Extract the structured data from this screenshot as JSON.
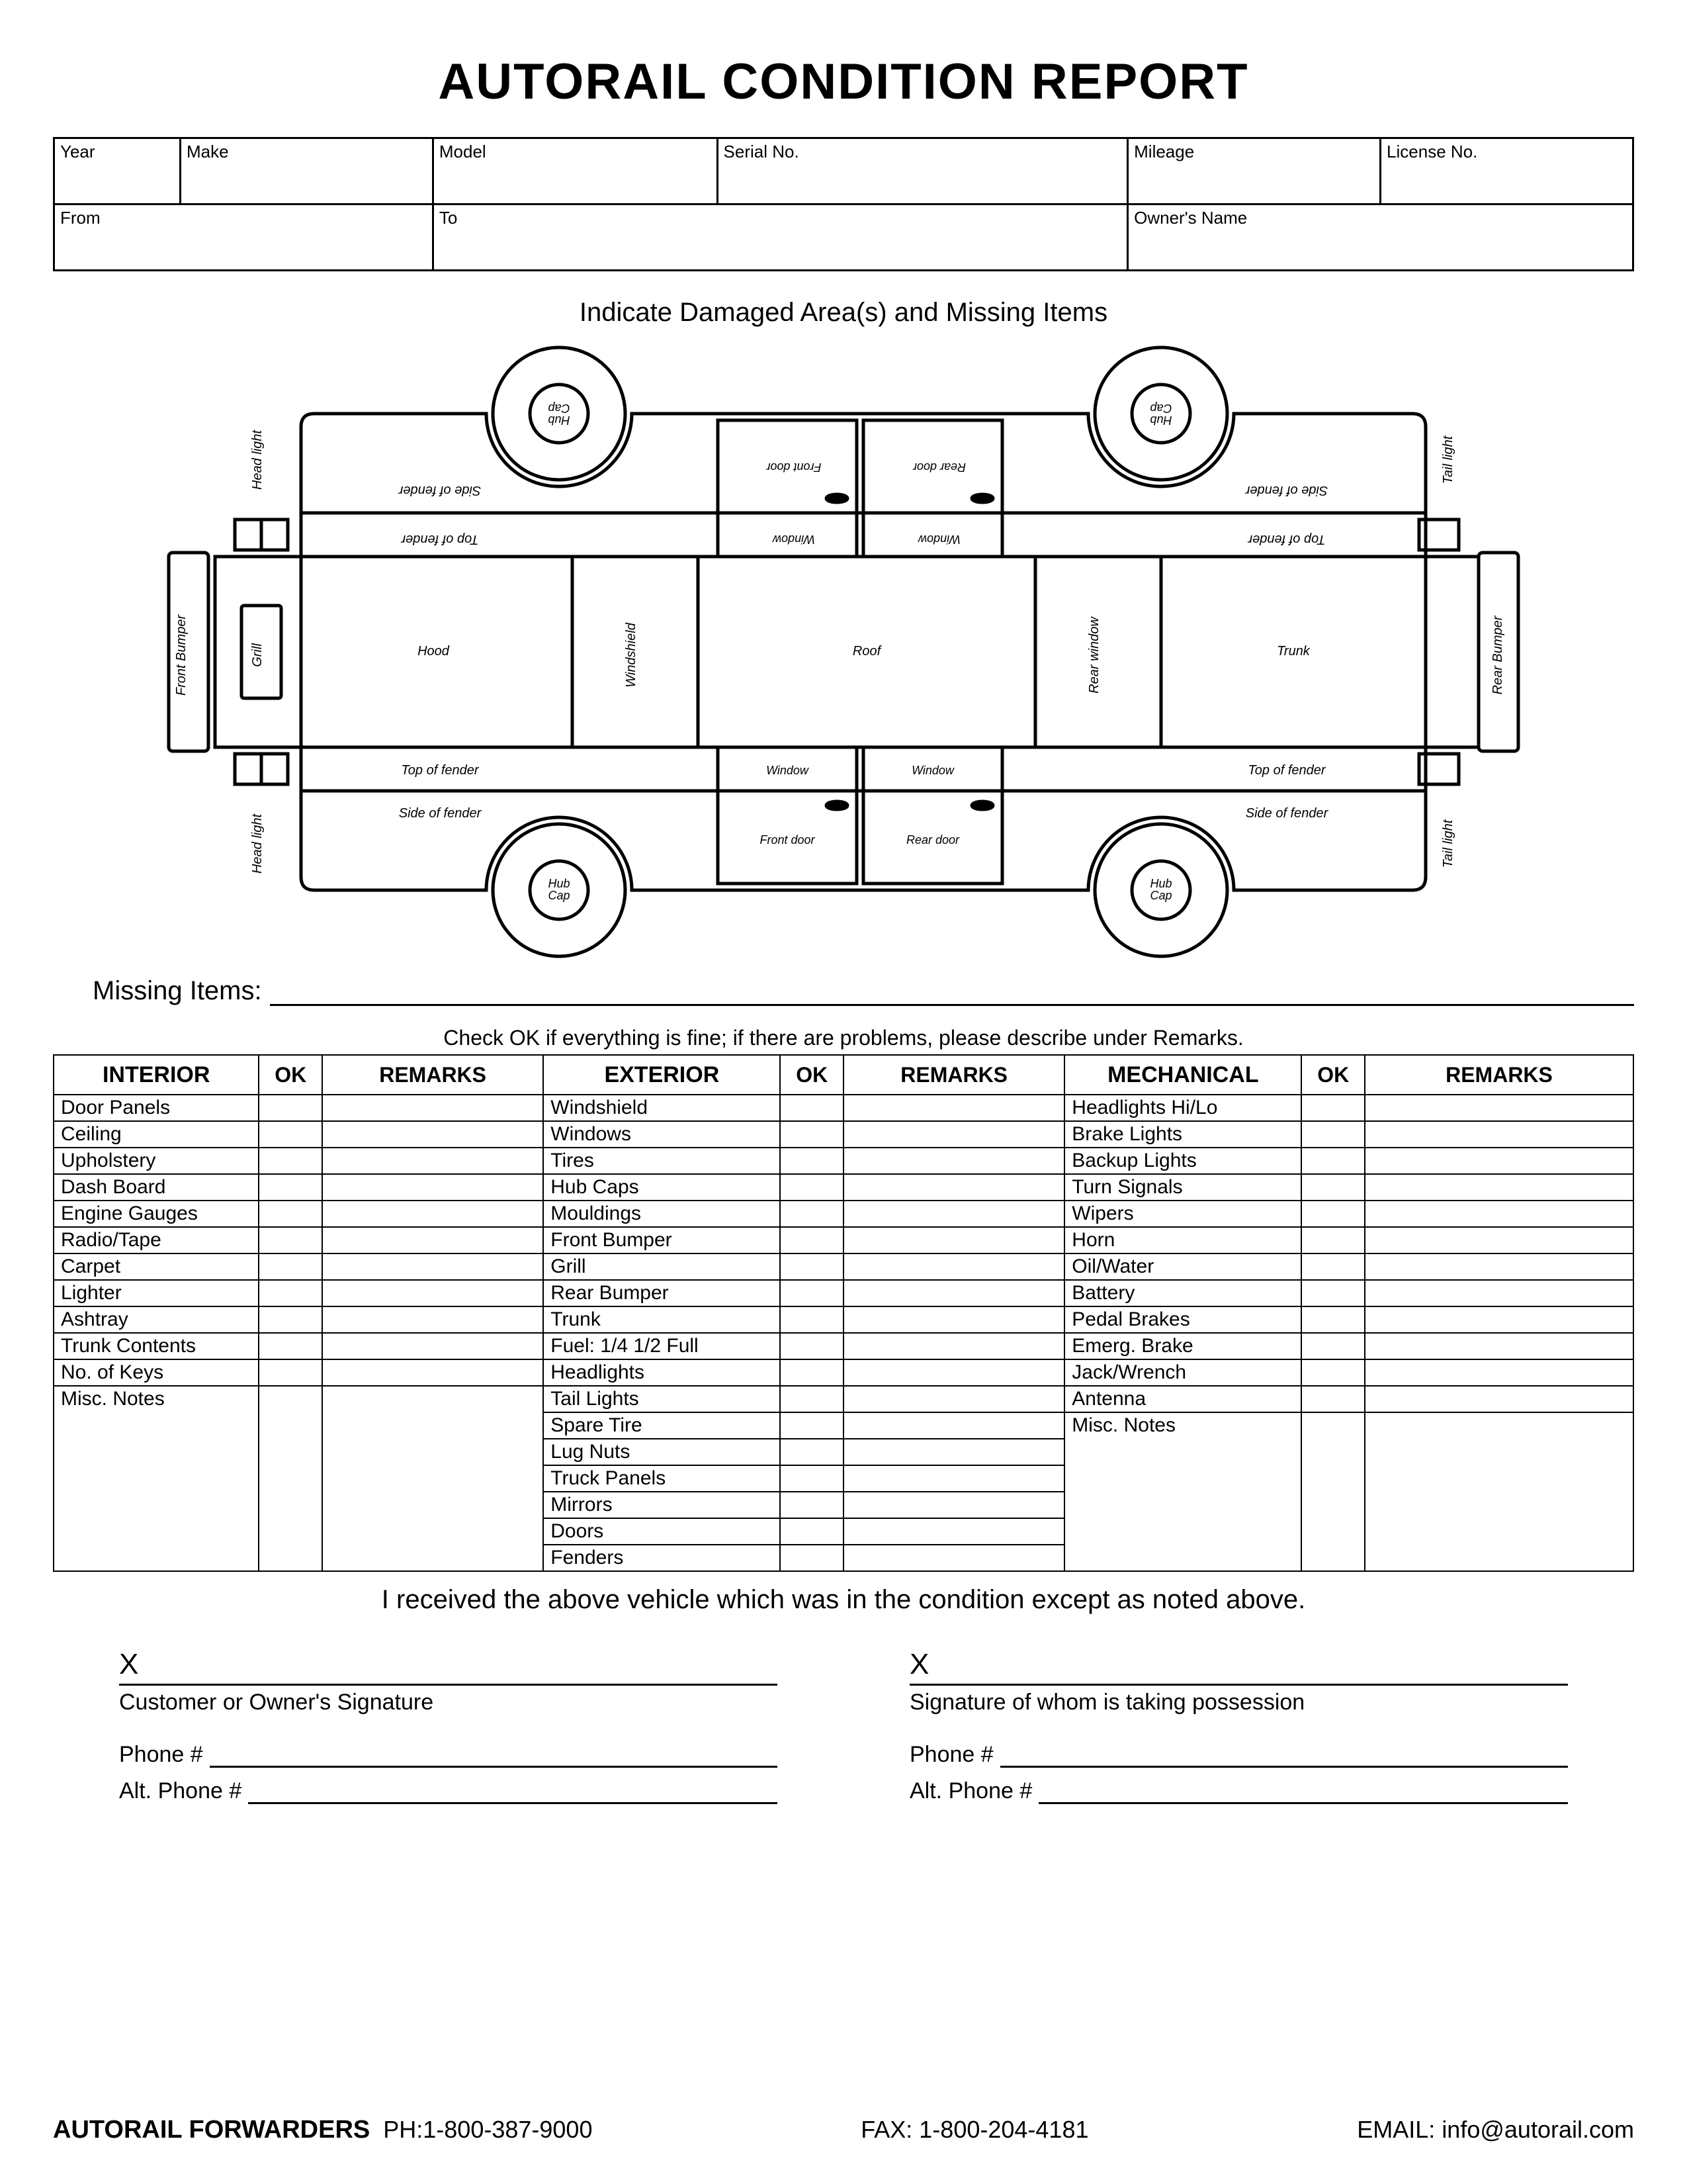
{
  "title": "AUTORAIL CONDITION REPORT",
  "info_row1": [
    "Year",
    "Make",
    "Model",
    "Serial No.",
    "Mileage",
    "License No."
  ],
  "info_row2": [
    "From",
    "To",
    "Owner's Name"
  ],
  "diagram_heading": "Indicate Damaged Area(s) and Missing Items",
  "diagram_labels": {
    "front_bumper": "Front Bumper",
    "rear_bumper": "Rear Bumper",
    "head_light": "Head light",
    "tail_light": "Tail light",
    "grill": "Grill",
    "hood": "Hood",
    "windshield": "Windshield",
    "roof": "Roof",
    "rear_window": "Rear window",
    "trunk": "Trunk",
    "top_of_fender": "Top of fender",
    "side_of_fender": "Side of fender",
    "window": "Window",
    "front_door": "Front door",
    "rear_door": "Rear door",
    "hub_cap": "Hub\nCap"
  },
  "missing_items_label": "Missing Items:",
  "check_instruction": "Check OK if everything is fine; if there are problems, please describe under Remarks.",
  "section_headers": [
    "INTERIOR",
    "OK",
    "REMARKS",
    "EXTERIOR",
    "OK",
    "REMARKS",
    "MECHANICAL",
    "OK",
    "REMARKS"
  ],
  "interior_items": [
    "Door Panels",
    "Ceiling",
    "Upholstery",
    "Dash Board",
    "Engine Gauges",
    "Radio/Tape",
    "Carpet",
    "Lighter",
    "Ashtray",
    "Trunk Contents",
    "No. of Keys",
    "Misc. Notes"
  ],
  "exterior_items": [
    "Windshield",
    "Windows",
    "Tires",
    "Hub Caps",
    "Mouldings",
    "Front Bumper",
    "Grill",
    "Rear Bumper",
    "Trunk",
    "Fuel: 1/4 1/2 Full",
    "Headlights",
    "Tail Lights",
    "Spare Tire",
    "Lug Nuts",
    "Truck Panels",
    "Mirrors",
    "Doors",
    "Fenders"
  ],
  "mechanical_items": [
    "Headlights Hi/Lo",
    "Brake Lights",
    "Backup Lights",
    "Turn Signals",
    "Wipers",
    "Horn",
    "Oil/Water",
    "Battery",
    "Pedal Brakes",
    "Emerg. Brake",
    "Jack/Wrench",
    "Antenna",
    "Misc. Notes"
  ],
  "receipt_text": "I received the above vehicle which was in the condition except as noted above.",
  "sig_x": "X",
  "sig_customer": "Customer or Owner's Signature",
  "sig_possession": "Signature of whom is taking possession",
  "phone_label": "Phone  #",
  "alt_phone_label": "Alt. Phone  #",
  "footer_company": "AUTORAIL FORWARDERS",
  "footer_phone": "PH:1-800-387-9000",
  "footer_fax": "FAX: 1-800-204-4181",
  "footer_email_label": "EMAIL:",
  "footer_email": "info@autorail.com"
}
